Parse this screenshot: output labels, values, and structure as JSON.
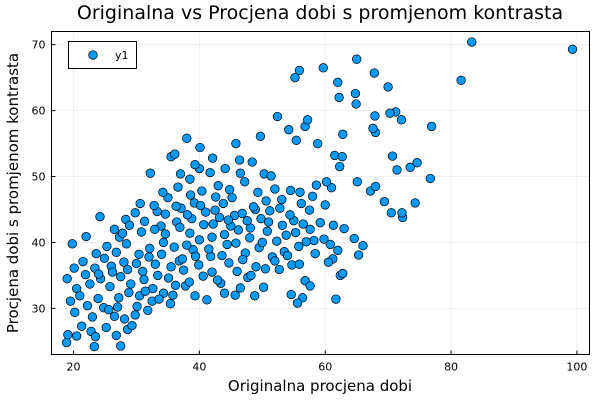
{
  "chart_data": {
    "type": "scatter",
    "title": "Originalna vs Procjena dobi s promjenom kontrasta",
    "xlabel": "Originalna procjena dobi",
    "ylabel": "Procjena dobi s promjenom kontrasta",
    "xlim": [
      16.5,
      102
    ],
    "ylim": [
      23,
      72
    ],
    "x_ticks": [
      20,
      40,
      60,
      80,
      100
    ],
    "x_tick_labels": [
      "20",
      "40",
      "60",
      "80",
      "100"
    ],
    "y_ticks": [
      30,
      40,
      50,
      60,
      70
    ],
    "y_tick_labels": [
      "30",
      "40",
      "50",
      "60",
      "70"
    ],
    "grid": true,
    "legend_position": "top-left",
    "series_color": "#009AFA",
    "series": [
      {
        "name": "y1",
        "points": [
          [
            99.3,
            69.3
          ],
          [
            83.3,
            70.4
          ],
          [
            81.6,
            64.6
          ],
          [
            59.7,
            66.5
          ],
          [
            65.0,
            67.8
          ],
          [
            62.0,
            64.3
          ],
          [
            67.8,
            65.7
          ],
          [
            55.9,
            66.1
          ],
          [
            55.2,
            65.0
          ],
          [
            70.0,
            63.6
          ],
          [
            64.8,
            62.6
          ],
          [
            62.2,
            62.0
          ],
          [
            64.9,
            61.0
          ],
          [
            72.1,
            58.6
          ],
          [
            71.2,
            59.8
          ],
          [
            70.3,
            59.6
          ],
          [
            67.9,
            59.2
          ],
          [
            76.9,
            57.6
          ],
          [
            68.0,
            56.7
          ],
          [
            67.6,
            57.3
          ],
          [
            62.8,
            56.4
          ],
          [
            56.8,
            57.6
          ],
          [
            54.2,
            57.1
          ],
          [
            57.2,
            58.6
          ],
          [
            52.4,
            59.1
          ],
          [
            38.0,
            55.8
          ],
          [
            45.8,
            55.0
          ],
          [
            49.7,
            56.1
          ],
          [
            55.4,
            55.5
          ],
          [
            58.8,
            55.0
          ],
          [
            61.5,
            53.2
          ],
          [
            62.7,
            53.0
          ],
          [
            70.7,
            53.1
          ],
          [
            74.6,
            52.1
          ],
          [
            73.5,
            51.4
          ],
          [
            76.7,
            49.7
          ],
          [
            71.4,
            51.0
          ],
          [
            67.2,
            47.8
          ],
          [
            68.0,
            48.5
          ],
          [
            65.1,
            49.2
          ],
          [
            74.3,
            46.0
          ],
          [
            69.4,
            46.2
          ],
          [
            70.5,
            44.5
          ],
          [
            72.3,
            43.8
          ],
          [
            72.2,
            44.5
          ],
          [
            61.0,
            48.3
          ],
          [
            62.3,
            51.5
          ],
          [
            40.1,
            54.4
          ],
          [
            35.5,
            53.0
          ],
          [
            36.1,
            53.4
          ],
          [
            42.1,
            52.8
          ],
          [
            32.2,
            50.5
          ],
          [
            38.5,
            49.6
          ],
          [
            40.0,
            51.2
          ],
          [
            46.4,
            52.5
          ],
          [
            50.3,
            50.4
          ],
          [
            51.4,
            50.1
          ],
          [
            60.2,
            49.2
          ],
          [
            58.6,
            48.7
          ],
          [
            56.0,
            47.6
          ],
          [
            60.0,
            45.7
          ],
          [
            55.0,
            43.3
          ],
          [
            57.6,
            42.0
          ],
          [
            59.8,
            40.5
          ],
          [
            60.8,
            39.7
          ],
          [
            64.6,
            40.6
          ],
          [
            66.0,
            39.5
          ],
          [
            62.0,
            38.8
          ],
          [
            65.3,
            38.1
          ],
          [
            61.2,
            37.5
          ],
          [
            54.7,
            36.6
          ],
          [
            55.9,
            36.7
          ],
          [
            62.4,
            35.0
          ],
          [
            62.8,
            35.3
          ],
          [
            56.8,
            34.2
          ],
          [
            57.6,
            33.4
          ],
          [
            54.6,
            32.1
          ],
          [
            56.4,
            31.6
          ],
          [
            55.6,
            30.8
          ],
          [
            61.7,
            31.4
          ],
          [
            22.0,
            40.9
          ],
          [
            19.8,
            39.8
          ],
          [
            24.2,
            43.9
          ],
          [
            26.5,
            42.0
          ],
          [
            28.3,
            43.5
          ],
          [
            20.1,
            36.1
          ],
          [
            19.0,
            34.5
          ],
          [
            20.5,
            33.0
          ],
          [
            19.5,
            31.1
          ],
          [
            20.2,
            29.4
          ],
          [
            19.1,
            26.0
          ],
          [
            20.5,
            25.8
          ],
          [
            18.9,
            24.8
          ],
          [
            21.3,
            27.3
          ],
          [
            22.8,
            26.5
          ],
          [
            23.5,
            25.7
          ],
          [
            23.3,
            24.2
          ],
          [
            27.5,
            24.3
          ],
          [
            26.8,
            25.9
          ],
          [
            25.2,
            27.1
          ],
          [
            28.6,
            26.8
          ],
          [
            29.3,
            27.4
          ],
          [
            23.0,
            28.7
          ],
          [
            24.8,
            30.1
          ],
          [
            26.5,
            28.8
          ],
          [
            29.8,
            29.0
          ],
          [
            31.8,
            29.7
          ],
          [
            32.5,
            31.1
          ],
          [
            35.4,
            30.7
          ],
          [
            39.3,
            31.9
          ],
          [
            41.2,
            31.3
          ],
          [
            44.0,
            32.3
          ],
          [
            45.7,
            32.0
          ],
          [
            48.8,
            31.9
          ],
          [
            46.5,
            33.1
          ],
          [
            50.2,
            33.2
          ],
          [
            47.7,
            34.7
          ],
          [
            43.4,
            33.8
          ],
          [
            52.7,
            35.9
          ],
          [
            37.8,
            33.4
          ],
          [
            35.0,
            46.8
          ],
          [
            37.1,
            45.2
          ],
          [
            33.3,
            44.7
          ],
          [
            29.8,
            44.5
          ],
          [
            31.3,
            43.2
          ],
          [
            33.9,
            42.5
          ],
          [
            40.4,
            47.8
          ],
          [
            42.6,
            46.9
          ],
          [
            44.8,
            48.0
          ],
          [
            47.2,
            49.2
          ],
          [
            49.3,
            47.6
          ],
          [
            52.0,
            48.1
          ],
          [
            53.1,
            46.5
          ],
          [
            51.2,
            44.8
          ],
          [
            54.4,
            44.2
          ],
          [
            48.9,
            45.0
          ],
          [
            45.6,
            44.1
          ],
          [
            43.8,
            45.9
          ],
          [
            41.0,
            44.6
          ],
          [
            39.2,
            46.0
          ],
          [
            36.4,
            43.1
          ],
          [
            38.5,
            41.4
          ],
          [
            42.2,
            42.8
          ],
          [
            46.2,
            41.9
          ],
          [
            48.1,
            42.2
          ],
          [
            50.8,
            41.7
          ],
          [
            52.3,
            40.2
          ],
          [
            49.5,
            39.2
          ],
          [
            47.3,
            38.4
          ],
          [
            44.4,
            39.7
          ],
          [
            41.8,
            37.9
          ],
          [
            39.0,
            38.9
          ],
          [
            36.8,
            37.2
          ],
          [
            34.3,
            40.0
          ],
          [
            32.1,
            39.1
          ],
          [
            30.4,
            38.2
          ],
          [
            28.4,
            39.8
          ],
          [
            26.8,
            38.5
          ],
          [
            24.9,
            37.6
          ],
          [
            23.4,
            36.1
          ],
          [
            21.9,
            35.1
          ],
          [
            22.6,
            33.7
          ],
          [
            24.3,
            34.5
          ],
          [
            25.8,
            33.3
          ],
          [
            27.5,
            34.8
          ],
          [
            29.1,
            33.7
          ],
          [
            31.0,
            35.6
          ],
          [
            33.0,
            36.7
          ],
          [
            35.1,
            34.6
          ],
          [
            37.5,
            35.8
          ],
          [
            39.9,
            36.6
          ],
          [
            42.0,
            35.5
          ],
          [
            44.7,
            36.9
          ],
          [
            46.9,
            37.4
          ],
          [
            49.0,
            36.3
          ],
          [
            51.6,
            37.8
          ],
          [
            53.5,
            38.6
          ],
          [
            55.8,
            39.4
          ],
          [
            58.2,
            40.3
          ],
          [
            56.5,
            42.8
          ],
          [
            53.8,
            41.1
          ],
          [
            27.2,
            31.6
          ],
          [
            28.8,
            32.4
          ],
          [
            30.5,
            31.9
          ],
          [
            32.6,
            33.0
          ],
          [
            34.3,
            32.3
          ],
          [
            36.2,
            33.5
          ],
          [
            38.4,
            34.0
          ],
          [
            40.6,
            34.9
          ],
          [
            42.9,
            34.3
          ],
          [
            21.0,
            31.9
          ],
          [
            22.2,
            30.4
          ],
          [
            23.9,
            31.5
          ],
          [
            25.6,
            29.8
          ],
          [
            27.0,
            30.2
          ],
          [
            28.1,
            28.4
          ],
          [
            30.1,
            30.3
          ],
          [
            31.4,
            32.6
          ],
          [
            33.6,
            31.4
          ],
          [
            35.8,
            32.0
          ],
          [
            30.8,
            41.6
          ],
          [
            32.9,
            42.0
          ],
          [
            34.6,
            41.3
          ],
          [
            36.9,
            42.3
          ],
          [
            38.8,
            43.6
          ],
          [
            40.7,
            42.7
          ],
          [
            43.2,
            43.8
          ],
          [
            45.0,
            42.5
          ],
          [
            47.6,
            43.3
          ],
          [
            49.8,
            43.6
          ],
          [
            26.0,
            36.4
          ],
          [
            28.0,
            37.0
          ],
          [
            30.0,
            36.8
          ],
          [
            32.0,
            37.8
          ],
          [
            34.0,
            38.2
          ],
          [
            36.0,
            39.3
          ],
          [
            38.0,
            39.6
          ],
          [
            40.0,
            40.4
          ],
          [
            42.0,
            40.8
          ],
          [
            44.0,
            41.2
          ],
          [
            24.0,
            35.2
          ],
          [
            26.2,
            35.5
          ],
          [
            28.6,
            35.9
          ],
          [
            31.2,
            34.4
          ],
          [
            33.4,
            35.0
          ],
          [
            35.5,
            36.3
          ],
          [
            37.3,
            37.5
          ],
          [
            39.4,
            37.9
          ],
          [
            41.5,
            39.0
          ],
          [
            43.6,
            38.0
          ],
          [
            45.8,
            39.9
          ],
          [
            48.0,
            40.7
          ],
          [
            50.0,
            40.0
          ],
          [
            46.0,
            35.6
          ],
          [
            48.2,
            35.0
          ],
          [
            50.5,
            36.0
          ],
          [
            52.0,
            37.2
          ],
          [
            54.0,
            38.0
          ],
          [
            45.2,
            46.8
          ],
          [
            43.0,
            48.6
          ],
          [
            38.6,
            47.2
          ],
          [
            36.6,
            48.4
          ],
          [
            34.2,
            47.6
          ],
          [
            32.8,
            45.6
          ],
          [
            30.6,
            45.9
          ],
          [
            28.9,
            42.6
          ],
          [
            27.3,
            40.8
          ],
          [
            25.3,
            39.4
          ],
          [
            23.6,
            38.3
          ],
          [
            21.5,
            37.1
          ],
          [
            57.5,
            44.9
          ],
          [
            59.2,
            43.0
          ],
          [
            61.3,
            42.6
          ],
          [
            63.0,
            42.1
          ],
          [
            58.4,
            38.3
          ],
          [
            60.5,
            37.0
          ],
          [
            53.2,
            42.6
          ],
          [
            51.0,
            43.1
          ],
          [
            55.3,
            41.5
          ],
          [
            57.0,
            40.1
          ],
          [
            56.2,
            45.9
          ],
          [
            58.0,
            47.0
          ],
          [
            54.5,
            47.9
          ],
          [
            52.8,
            45.2
          ],
          [
            50.6,
            46.3
          ],
          [
            37.0,
            50.4
          ],
          [
            39.3,
            51.8
          ],
          [
            41.7,
            50.6
          ],
          [
            44.1,
            51.2
          ],
          [
            46.5,
            50.5
          ],
          [
            48.4,
            52.2
          ],
          [
            34.6,
            44.3
          ],
          [
            36.3,
            45.5
          ],
          [
            38.1,
            44.2
          ],
          [
            40.2,
            45.6
          ],
          [
            42.5,
            44.9
          ],
          [
            44.6,
            43.4
          ],
          [
            46.8,
            44.4
          ],
          [
            48.6,
            45.4
          ],
          [
            27.8,
            41.4
          ]
        ]
      }
    ]
  }
}
